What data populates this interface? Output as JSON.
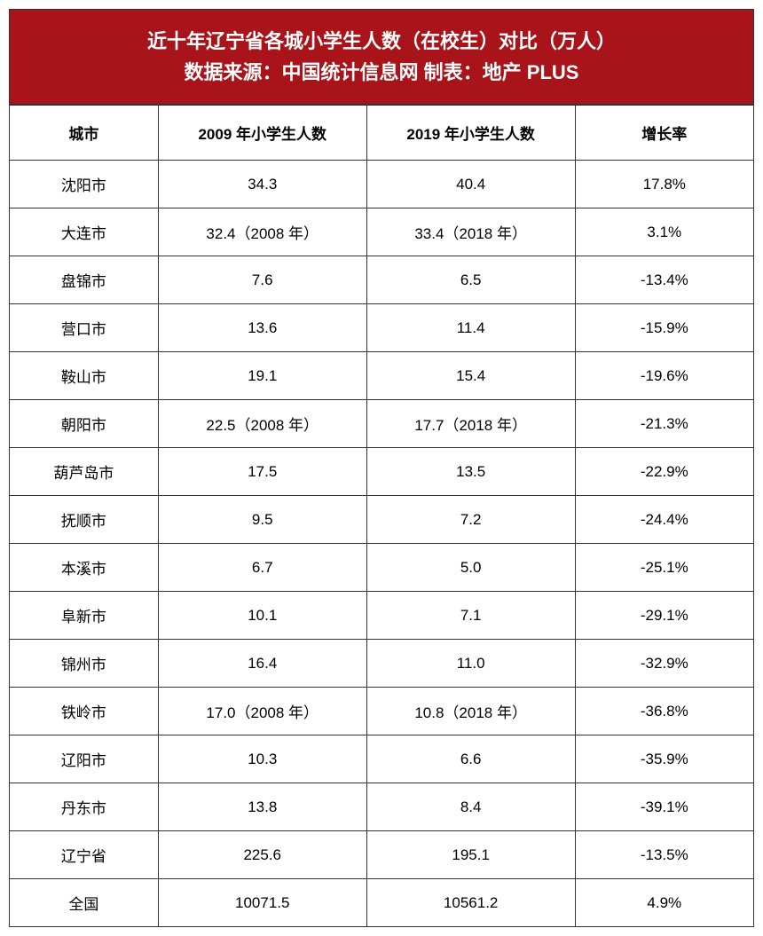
{
  "header": {
    "line1": "近十年辽宁省各城小学生人数（在校生）对比（万人）",
    "line2": "数据来源：中国统计信息网 制表：地产 PLUS"
  },
  "columns": {
    "city": "城市",
    "count2009": "2009 年小学生人数",
    "count2019": "2019 年小学生人数",
    "growth": "增长率"
  },
  "rows": [
    {
      "city": "沈阳市",
      "v2009": "34.3",
      "v2019": "40.4",
      "growth": "17.8%"
    },
    {
      "city": "大连市",
      "v2009": "32.4（2008 年）",
      "v2019": "33.4（2018 年）",
      "growth": "3.1%"
    },
    {
      "city": "盘锦市",
      "v2009": "7.6",
      "v2019": "6.5",
      "growth": "-13.4%"
    },
    {
      "city": "营口市",
      "v2009": "13.6",
      "v2019": "11.4",
      "growth": "-15.9%"
    },
    {
      "city": "鞍山市",
      "v2009": "19.1",
      "v2019": "15.4",
      "growth": "-19.6%"
    },
    {
      "city": "朝阳市",
      "v2009": "22.5（2008 年）",
      "v2019": "17.7（2018 年）",
      "growth": "-21.3%"
    },
    {
      "city": "葫芦岛市",
      "v2009": "17.5",
      "v2019": "13.5",
      "growth": "-22.9%"
    },
    {
      "city": "抚顺市",
      "v2009": "9.5",
      "v2019": "7.2",
      "growth": "-24.4%"
    },
    {
      "city": "本溪市",
      "v2009": "6.7",
      "v2019": "5.0",
      "growth": "-25.1%"
    },
    {
      "city": "阜新市",
      "v2009": "10.1",
      "v2019": "7.1",
      "growth": "-29.1%"
    },
    {
      "city": "锦州市",
      "v2009": "16.4",
      "v2019": "11.0",
      "growth": "-32.9%"
    },
    {
      "city": "铁岭市",
      "v2009": "17.0（2008 年）",
      "v2019": "10.8（2018 年）",
      "growth": "-36.8%"
    },
    {
      "city": "辽阳市",
      "v2009": "10.3",
      "v2019": "6.6",
      "growth": "-35.9%"
    },
    {
      "city": "丹东市",
      "v2009": "13.8",
      "v2019": "8.4",
      "growth": "-39.1%"
    },
    {
      "city": "辽宁省",
      "v2009": "225.6",
      "v2019": "195.1",
      "growth": "-13.5%"
    },
    {
      "city": "全国",
      "v2009": "10071.5",
      "v2019": "10561.2",
      "growth": "4.9%"
    }
  ],
  "styling": {
    "header_bg": "#a9141a",
    "header_text_color": "#ffffff",
    "border_color": "#333333",
    "cell_bg": "#ffffff",
    "cell_text_color": "#000000",
    "header_fontsize": 22,
    "th_fontsize": 17,
    "td_fontsize": 17
  }
}
